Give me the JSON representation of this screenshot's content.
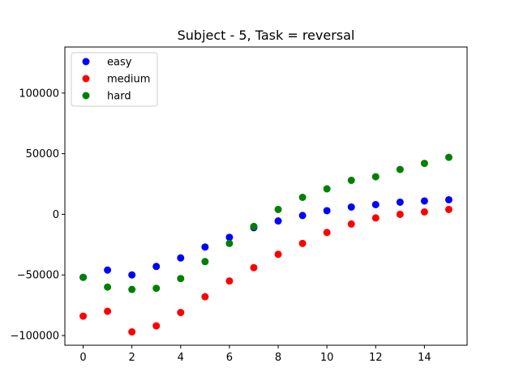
{
  "chart_data": {
    "type": "scatter",
    "title": "Subject - 5, Task = reversal",
    "xlabel": "",
    "ylabel": "",
    "xlim": [
      -0.75,
      15.75
    ],
    "ylim": [
      -108000,
      138000
    ],
    "xticks": [
      0,
      2,
      4,
      6,
      8,
      10,
      12,
      14
    ],
    "yticks": [
      -100000,
      -50000,
      0,
      50000,
      100000
    ],
    "grid": false,
    "legend_position": "top-left",
    "x": [
      0,
      1,
      2,
      3,
      4,
      5,
      6,
      7,
      8,
      9,
      10,
      11,
      12,
      13,
      14,
      15
    ],
    "series": [
      {
        "name": "easy",
        "color": "#0000ff",
        "values": [
          -52000,
          -46000,
          -50000,
          -43000,
          -36000,
          -27000,
          -19000,
          -11000,
          -5500,
          -1000,
          3000,
          6000,
          8000,
          10000,
          11000,
          12000
        ]
      },
      {
        "name": "medium",
        "color": "#ff0000",
        "values": [
          -84000,
          -80000,
          -97000,
          -92000,
          -81000,
          -68000,
          -55000,
          -44000,
          -33000,
          -24000,
          -15000,
          -8000,
          -3000,
          0,
          2000,
          4000
        ]
      },
      {
        "name": "hard",
        "color": "#008000",
        "values": [
          -52000,
          -60000,
          -62000,
          -61000,
          -53000,
          -39000,
          -24000,
          -10000,
          4000,
          14000,
          21000,
          28000,
          31000,
          37000,
          42000,
          47000
        ]
      }
    ]
  }
}
